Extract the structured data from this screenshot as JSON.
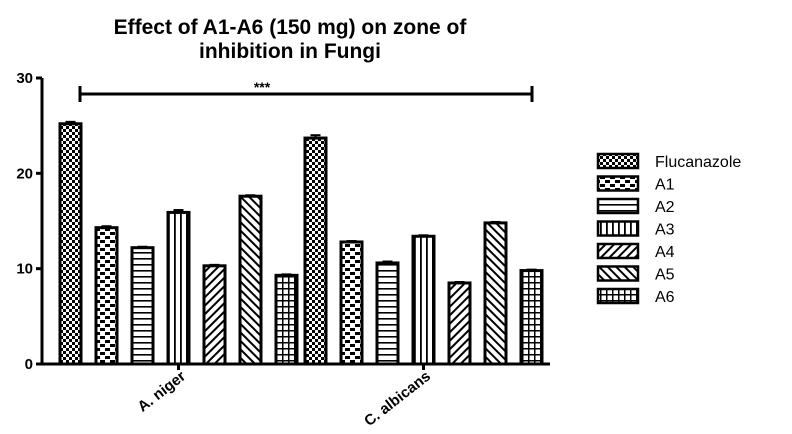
{
  "chart_data": {
    "type": "bar",
    "title_line1": "Effect of A1-A6 (150 mg) on zone of",
    "title_line2": "inhibition in Fungi",
    "categories": [
      "A. niger",
      "C. albicans"
    ],
    "ylim": [
      0,
      30
    ],
    "yticks": [
      "0",
      "10",
      "20",
      "30"
    ],
    "series": [
      {
        "name": "Flucanazole",
        "values": [
          25.2,
          23.7
        ],
        "errors": [
          0.2,
          0.3
        ],
        "pattern": "checker"
      },
      {
        "name": "A1",
        "values": [
          14.3,
          12.8
        ],
        "errors": [
          0.15,
          0.1
        ],
        "pattern": "dashes"
      },
      {
        "name": "A2",
        "values": [
          12.2,
          10.6
        ],
        "errors": [
          0.1,
          0.15
        ],
        "pattern": "hlines"
      },
      {
        "name": "A3",
        "values": [
          15.9,
          13.4
        ],
        "errors": [
          0.25,
          0.1
        ],
        "pattern": "vlines"
      },
      {
        "name": "A4",
        "values": [
          10.3,
          8.5
        ],
        "errors": [
          0.1,
          0.1
        ],
        "pattern": "diag-right"
      },
      {
        "name": "A5",
        "values": [
          17.6,
          14.8
        ],
        "errors": [
          0.1,
          0.1
        ],
        "pattern": "diag-left"
      },
      {
        "name": "A6",
        "values": [
          9.3,
          9.8
        ],
        "errors": [
          0.1,
          0.1
        ],
        "pattern": "grid"
      }
    ],
    "significance": "***",
    "grid": false,
    "legend_position": "right"
  }
}
